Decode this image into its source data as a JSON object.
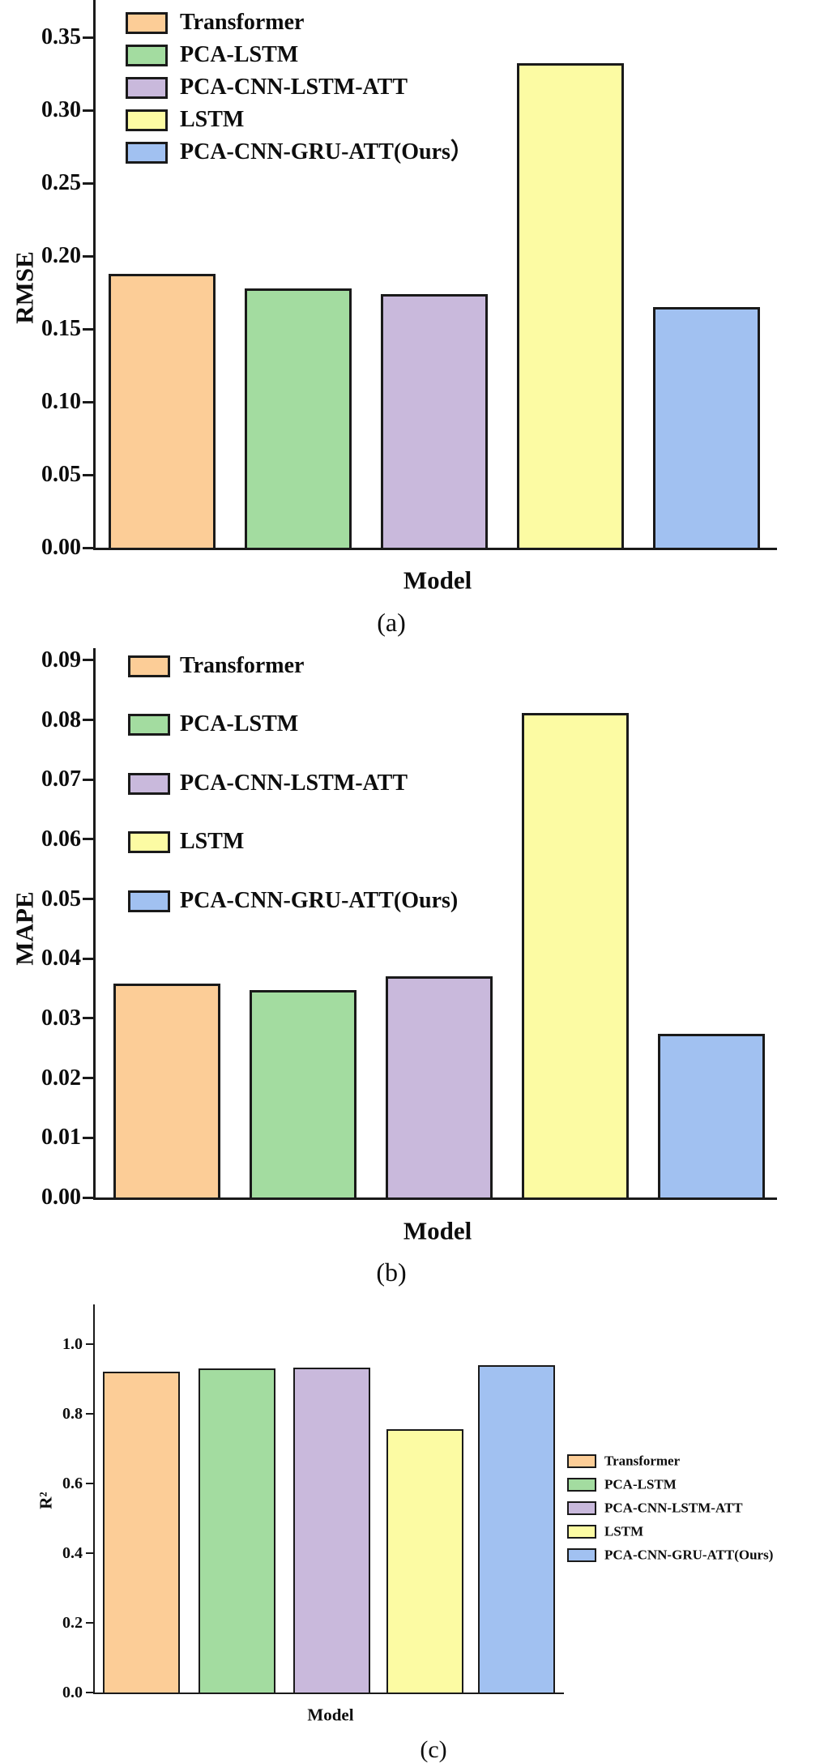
{
  "figure": {
    "background": "#ffffff",
    "axis_color": "#1a1a1a",
    "text_color": "#0d0d0d"
  },
  "colors": {
    "series": [
      "#FCCD97",
      "#A3DCA0",
      "#C9B9DC",
      "#FCFBA3",
      "#A1C1F1"
    ],
    "bar_border": "#1a1a1a"
  },
  "chart_data": [
    {
      "id": "a",
      "type": "bar",
      "title": "",
      "ylabel": "RMSE",
      "xlabel": "Model",
      "caption": "(a)",
      "categories": [
        "Transformer",
        "PCA-LSTM",
        "PCA-CNN-LSTM-ATT",
        "LSTM",
        "PCA-CNN-GRU-ATT(Ours)"
      ],
      "values": [
        0.188,
        0.178,
        0.174,
        0.332,
        0.165
      ],
      "ylim": [
        0,
        0.376
      ],
      "grid": false,
      "ytick_values": [
        0.0,
        0.05,
        0.1,
        0.15,
        0.2,
        0.25,
        0.3,
        0.35
      ],
      "ytick_labels": [
        "0.00",
        "0.05",
        "0.10",
        "0.15",
        "0.20",
        "0.25",
        "0.30",
        "0.35"
      ],
      "legend_position": "top-left-inside",
      "legend": [
        "Transformer",
        "PCA-LSTM",
        "PCA-CNN-LSTM-ATT",
        "LSTM",
        "PCA-CNN-GRU-ATT(Ours）"
      ]
    },
    {
      "id": "b",
      "type": "bar",
      "title": "",
      "ylabel": "MAPE",
      "xlabel": "Model",
      "caption": "(b)",
      "categories": [
        "Transformer",
        "PCA-LSTM",
        "PCA-CNN-LSTM-ATT",
        "LSTM",
        "PCA-CNN-GRU-ATT(Ours)"
      ],
      "values": [
        0.0358,
        0.0348,
        0.0371,
        0.0812,
        0.0274
      ],
      "ylim": [
        0,
        0.092
      ],
      "grid": false,
      "ytick_values": [
        0.0,
        0.01,
        0.02,
        0.03,
        0.04,
        0.05,
        0.06,
        0.07,
        0.08,
        0.09
      ],
      "ytick_labels": [
        "0.00",
        "0.01",
        "0.02",
        "0.03",
        "0.04",
        "0.05",
        "0.06",
        "0.07",
        "0.08",
        "0.09"
      ],
      "legend_position": "top-left-inside",
      "legend": [
        "Transformer",
        "PCA-LSTM",
        "PCA-CNN-LSTM-ATT",
        "LSTM",
        "PCA-CNN-GRU-ATT(Ours)"
      ]
    },
    {
      "id": "c",
      "type": "bar",
      "title": "",
      "ylabel": "R²",
      "xlabel": "Model",
      "caption": "(c)",
      "categories": [
        "Transformer",
        "PCA-LSTM",
        "PCA-CNN-LSTM-ATT",
        "LSTM",
        "PCA-CNN-GRU-ATT(Ours)"
      ],
      "values": [
        0.921,
        0.93,
        0.932,
        0.756,
        0.94
      ],
      "ylim": [
        0,
        1.11
      ],
      "grid": false,
      "ytick_values": [
        0.0,
        0.2,
        0.4,
        0.6,
        0.8,
        1.0
      ],
      "ytick_labels": [
        "0.0",
        "0.2",
        "0.4",
        "0.6",
        "0.8",
        "1.0"
      ],
      "legend_position": "right-outside",
      "legend": [
        "Transformer",
        "PCA-LSTM",
        "PCA-CNN-LSTM-ATT",
        "LSTM",
        "PCA-CNN-GRU-ATT(Ours)"
      ]
    }
  ]
}
